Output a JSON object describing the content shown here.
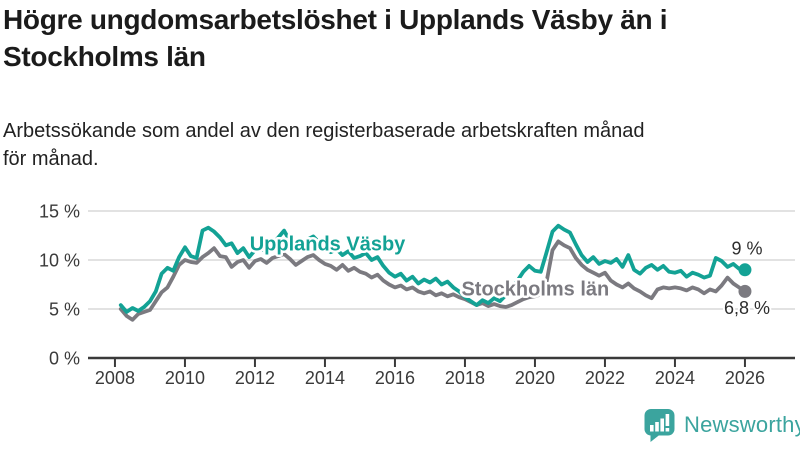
{
  "header": {
    "title": "Högre ungdomsarbetslöshet i Upplands Väsby än i\nStockholms län",
    "subtitle": "Arbetssökande som andel av den registerbaserade arbetskraften månad\nför månad."
  },
  "chart_data": {
    "type": "line",
    "x_start": 2008.1667,
    "x_step": 0.16667,
    "xlim": [
      2007.23,
      2027.43
    ],
    "ylim": [
      0,
      15
    ],
    "grid": true,
    "legend_position": "inline-labels",
    "yticks": [
      {
        "value": 0,
        "label": "0 %"
      },
      {
        "value": 5,
        "label": "5 %"
      },
      {
        "value": 10,
        "label": "10 %"
      },
      {
        "value": 15,
        "label": "15 %"
      }
    ],
    "xticks": [
      2008,
      2010,
      2012,
      2014,
      2016,
      2018,
      2020,
      2022,
      2024,
      2026
    ],
    "axis_color": "#3a3a3a",
    "grid_color": "#d8d8d8",
    "series": [
      {
        "name": "Stockholms län",
        "color": "#7B7A80",
        "label_pos": {
          "x": 2017.9,
          "y": 7.1
        },
        "end_label": "6,8 %",
        "end_label_side": "below",
        "values": [
          5.0,
          4.3,
          3.9,
          4.5,
          4.7,
          4.9,
          5.8,
          6.7,
          7.2,
          8.3,
          9.5,
          10.0,
          9.8,
          9.7,
          10.3,
          10.7,
          11.2,
          10.4,
          10.3,
          9.3,
          9.8,
          10.0,
          9.2,
          9.9,
          10.1,
          9.7,
          10.2,
          10.4,
          10.6,
          10.1,
          9.5,
          9.9,
          10.3,
          10.5,
          10.0,
          9.6,
          9.4,
          9.0,
          9.5,
          8.9,
          9.2,
          8.8,
          8.6,
          8.2,
          8.5,
          7.9,
          7.5,
          7.2,
          7.4,
          7.0,
          7.2,
          6.8,
          6.6,
          6.8,
          6.4,
          6.6,
          6.3,
          6.5,
          6.2,
          6.0,
          5.7,
          5.4,
          5.6,
          5.3,
          5.5,
          5.3,
          5.2,
          5.4,
          5.7,
          6.0,
          6.2,
          6.3,
          6.5,
          7.8,
          11.0,
          11.9,
          11.5,
          11.2,
          10.2,
          9.5,
          9.0,
          8.7,
          8.4,
          8.7,
          7.9,
          7.5,
          7.2,
          7.6,
          7.1,
          6.8,
          6.4,
          6.1,
          7.0,
          7.2,
          7.1,
          7.2,
          7.1,
          6.9,
          7.2,
          7.0,
          6.6,
          7.0,
          6.8,
          7.4,
          8.2,
          7.6,
          7.2,
          6.8
        ]
      },
      {
        "name": "Upplands Väsby",
        "color": "#13A295",
        "label_pos": {
          "x": 2011.85,
          "y": 11.7
        },
        "end_label": "9 %",
        "end_label_side": "above",
        "values": [
          5.4,
          4.7,
          5.1,
          4.8,
          5.2,
          5.8,
          6.8,
          8.6,
          9.2,
          8.9,
          10.3,
          11.3,
          10.4,
          10.2,
          13.0,
          13.3,
          12.9,
          12.3,
          11.5,
          11.7,
          10.7,
          11.2,
          10.3,
          11.0,
          11.2,
          10.8,
          11.6,
          12.3,
          13.0,
          11.9,
          11.0,
          11.4,
          12.1,
          12.4,
          11.8,
          11.2,
          10.8,
          11.1,
          10.5,
          10.9,
          10.2,
          10.4,
          10.7,
          10.0,
          10.3,
          9.4,
          8.7,
          8.3,
          8.6,
          7.9,
          8.3,
          7.6,
          8.0,
          7.7,
          8.1,
          7.5,
          7.8,
          7.2,
          6.8,
          6.2,
          5.8,
          5.4,
          5.9,
          5.6,
          6.1,
          5.8,
          6.4,
          7.0,
          7.9,
          8.8,
          9.4,
          8.9,
          8.8,
          10.8,
          12.9,
          13.5,
          13.1,
          12.8,
          11.6,
          10.5,
          9.8,
          10.3,
          9.6,
          9.9,
          9.7,
          10.1,
          9.3,
          10.5,
          9.0,
          8.6,
          9.2,
          9.5,
          9.0,
          9.4,
          8.8,
          8.7,
          8.9,
          8.3,
          8.7,
          8.5,
          8.2,
          8.4,
          10.2,
          9.9,
          9.3,
          9.6,
          9.1,
          9.0
        ]
      }
    ]
  },
  "footer": {
    "brand": "Newsworthy",
    "brand_color": "#3BA49E",
    "logo_icon": "bar-chart-speech-bubble-icon"
  }
}
